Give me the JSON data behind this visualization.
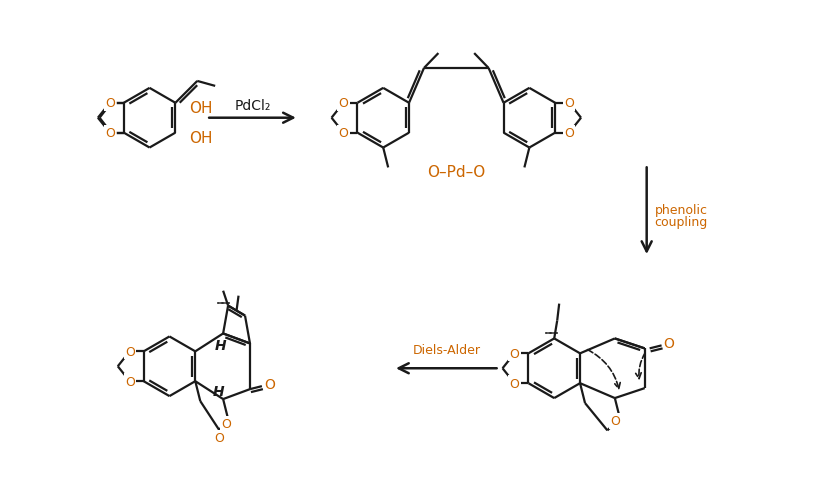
{
  "background_color": "#ffffff",
  "line_color": "#1a1a1a",
  "orange_color": "#cc6600",
  "fig_width": 8.4,
  "fig_height": 4.81,
  "dpi": 100,
  "label_pdcl2": "PdCl₂",
  "label_phenolic_1": "phenolic",
  "label_phenolic_2": "coupling",
  "label_diels_alder": "Diels-Alder",
  "label_OH": "OH",
  "label_O_Pd_O": "O–Pd–O",
  "label_H1": "H",
  "label_H2": "H",
  "label_O": "O"
}
